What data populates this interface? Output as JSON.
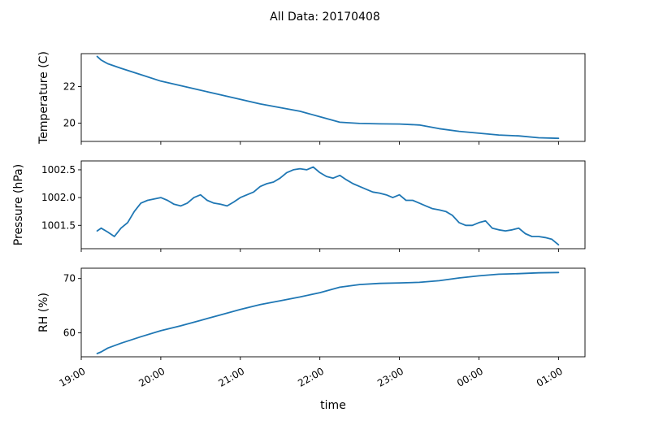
{
  "figure": {
    "title": "All Data: 20170408",
    "xlabel": "time"
  },
  "chart_data": [
    {
      "type": "line",
      "ylabel": "Temperature (C)",
      "yticks": [
        20,
        22
      ],
      "ytick_labels": [
        "20",
        "22"
      ],
      "ylim": [
        19.0,
        23.8
      ],
      "xlim": [
        "19:00",
        "01:20"
      ],
      "series": [
        {
          "color": "#1f77b4",
          "x": [
            "19:12",
            "19:15",
            "19:20",
            "19:30",
            "19:45",
            "20:00",
            "20:15",
            "20:30",
            "20:45",
            "21:00",
            "21:15",
            "21:30",
            "21:45",
            "22:00",
            "22:15",
            "22:30",
            "22:45",
            "23:00",
            "23:15",
            "23:30",
            "23:45",
            "00:00",
            "00:15",
            "00:30",
            "00:45",
            "01:00"
          ],
          "values": [
            23.65,
            23.45,
            23.25,
            23.0,
            22.65,
            22.3,
            22.05,
            21.8,
            21.55,
            21.3,
            21.05,
            20.85,
            20.65,
            20.35,
            20.05,
            19.98,
            19.96,
            19.95,
            19.9,
            19.7,
            19.55,
            19.45,
            19.35,
            19.3,
            19.2,
            19.17
          ]
        }
      ]
    },
    {
      "type": "line",
      "ylabel": "Pressure (hPa)",
      "yticks": [
        1001.5,
        1002.0,
        1002.5
      ],
      "ytick_labels": [
        "1001.5",
        "1002.0",
        "1002.5"
      ],
      "ylim": [
        1001.08,
        1002.66
      ],
      "xlim": [
        "19:00",
        "01:20"
      ],
      "series": [
        {
          "color": "#1f77b4",
          "x": [
            "19:12",
            "19:15",
            "19:20",
            "19:25",
            "19:30",
            "19:35",
            "19:40",
            "19:45",
            "19:50",
            "20:00",
            "20:05",
            "20:10",
            "20:15",
            "20:20",
            "20:25",
            "20:30",
            "20:35",
            "20:40",
            "20:45",
            "20:50",
            "20:55",
            "21:00",
            "21:05",
            "21:10",
            "21:15",
            "21:20",
            "21:25",
            "21:30",
            "21:35",
            "21:40",
            "21:45",
            "21:50",
            "21:55",
            "22:00",
            "22:05",
            "22:10",
            "22:15",
            "22:20",
            "22:25",
            "22:30",
            "22:35",
            "22:40",
            "22:45",
            "22:50",
            "22:55",
            "23:00",
            "23:05",
            "23:10",
            "23:15",
            "23:20",
            "23:25",
            "23:30",
            "23:35",
            "23:40",
            "23:45",
            "23:50",
            "23:55",
            "00:00",
            "00:05",
            "00:10",
            "00:15",
            "00:20",
            "00:25",
            "00:30",
            "00:35",
            "00:40",
            "00:45",
            "00:50",
            "00:55",
            "01:00"
          ],
          "values": [
            1001.4,
            1001.45,
            1001.38,
            1001.3,
            1001.45,
            1001.55,
            1001.75,
            1001.9,
            1001.95,
            1002.0,
            1001.95,
            1001.88,
            1001.85,
            1001.9,
            1002.0,
            1002.05,
            1001.95,
            1001.9,
            1001.88,
            1001.85,
            1001.92,
            1002.0,
            1002.05,
            1002.1,
            1002.2,
            1002.25,
            1002.28,
            1002.35,
            1002.45,
            1002.5,
            1002.52,
            1002.5,
            1002.55,
            1002.45,
            1002.38,
            1002.35,
            1002.4,
            1002.32,
            1002.25,
            1002.2,
            1002.15,
            1002.1,
            1002.08,
            1002.05,
            1002.0,
            1002.05,
            1001.95,
            1001.95,
            1001.9,
            1001.85,
            1001.8,
            1001.78,
            1001.75,
            1001.68,
            1001.55,
            1001.5,
            1001.5,
            1001.55,
            1001.58,
            1001.45,
            1001.42,
            1001.4,
            1001.42,
            1001.45,
            1001.35,
            1001.3,
            1001.3,
            1001.28,
            1001.25,
            1001.15
          ]
        }
      ]
    },
    {
      "type": "line",
      "ylabel": "RH (%)",
      "yticks": [
        60,
        70
      ],
      "ytick_labels": [
        "60",
        "70"
      ],
      "ylim": [
        55.6,
        71.9
      ],
      "xlim": [
        "19:00",
        "01:20"
      ],
      "series": [
        {
          "color": "#1f77b4",
          "x": [
            "19:12",
            "19:15",
            "19:20",
            "19:30",
            "19:45",
            "20:00",
            "20:15",
            "20:30",
            "20:45",
            "21:00",
            "21:15",
            "21:30",
            "21:45",
            "22:00",
            "22:15",
            "22:30",
            "22:45",
            "23:00",
            "23:15",
            "23:30",
            "23:45",
            "00:00",
            "00:15",
            "00:30",
            "00:45",
            "01:00"
          ],
          "values": [
            56.2,
            56.5,
            57.2,
            58.1,
            59.3,
            60.4,
            61.3,
            62.3,
            63.3,
            64.3,
            65.2,
            65.9,
            66.6,
            67.4,
            68.4,
            68.9,
            69.1,
            69.2,
            69.3,
            69.6,
            70.1,
            70.5,
            70.8,
            70.9,
            71.05,
            71.1
          ]
        }
      ]
    }
  ],
  "x_ticks": [
    "19:00",
    "20:00",
    "21:00",
    "22:00",
    "23:00",
    "00:00",
    "01:00"
  ]
}
